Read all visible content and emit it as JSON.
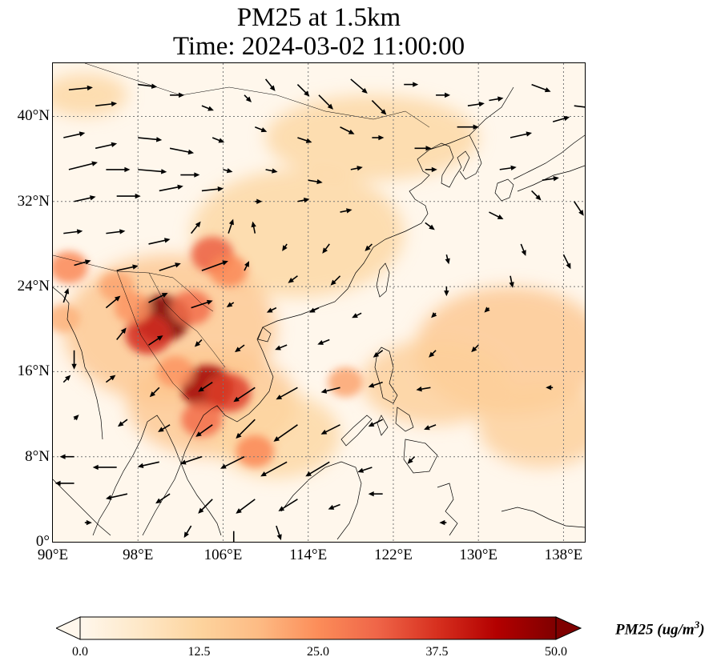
{
  "title": {
    "line1": "PM25 at 1.5km",
    "line2": "Time: 2024-03-02 11:00:00"
  },
  "map": {
    "extent": {
      "lon": [
        90,
        140
      ],
      "lat": [
        0,
        45
      ]
    },
    "lat_ticks": [
      {
        "value": 0,
        "label": "0°"
      },
      {
        "value": 8,
        "label": "8°N"
      },
      {
        "value": 16,
        "label": "16°N"
      },
      {
        "value": 24,
        "label": "24°N"
      },
      {
        "value": 32,
        "label": "32°N"
      },
      {
        "value": 40,
        "label": "40°N"
      }
    ],
    "lon_ticks": [
      {
        "value": 90,
        "label": "90°E"
      },
      {
        "value": 98,
        "label": "98°E"
      },
      {
        "value": 106,
        "label": "106°E"
      },
      {
        "value": 114,
        "label": "114°E"
      },
      {
        "value": 122,
        "label": "122°E"
      },
      {
        "value": 130,
        "label": "130°E"
      },
      {
        "value": 138,
        "label": "138°E"
      }
    ],
    "gridlines": true,
    "colors": {
      "background": "#fff7ec",
      "coast": "#000000",
      "grid": "#777777",
      "arrow": "#000000"
    }
  },
  "colorbar": {
    "label_main": "PM25 (ug/m",
    "label_sup": "3",
    "label_end": ")",
    "min": 0,
    "max": 50,
    "extend": "both",
    "ticks": [
      "0.0",
      "12.5",
      "25.0",
      "37.5",
      "50.0"
    ],
    "colormap": [
      "#fff7ec",
      "#fee8c8",
      "#fdd49e",
      "#fdbb84",
      "#fc8d59",
      "#ef6548",
      "#d7301f",
      "#b30000",
      "#7f0000"
    ]
  },
  "pm25_hotspots": [
    {
      "lon": 100.3,
      "lat": 21.0,
      "value": 50
    },
    {
      "lon": 99.0,
      "lat": 19.5,
      "value": 38
    },
    {
      "lon": 103.0,
      "lat": 22.0,
      "value": 30
    },
    {
      "lon": 104.5,
      "lat": 14.5,
      "value": 46
    },
    {
      "lon": 106.5,
      "lat": 14.0,
      "value": 36
    },
    {
      "lon": 104.0,
      "lat": 11.5,
      "value": 30
    },
    {
      "lon": 105.0,
      "lat": 27.0,
      "value": 32
    },
    {
      "lon": 106.5,
      "lat": 25.5,
      "value": 26
    },
    {
      "lon": 91.5,
      "lat": 25.8,
      "value": 26
    },
    {
      "lon": 96.0,
      "lat": 24.0,
      "value": 22
    },
    {
      "lon": 109.0,
      "lat": 8.5,
      "value": 26
    },
    {
      "lon": 117.5,
      "lat": 15.0,
      "value": 22
    },
    {
      "lon": 97.5,
      "lat": 22.0,
      "value": 24
    },
    {
      "lon": 91.0,
      "lat": 21.0,
      "value": 20
    },
    {
      "lon": 101.5,
      "lat": 16.0,
      "value": 24
    }
  ],
  "pm25_bands": [
    {
      "lon": 113,
      "lat": 29,
      "rx": 10,
      "ry": 6,
      "value": 12
    },
    {
      "lon": 120,
      "lat": 38,
      "rx": 10,
      "ry": 4,
      "value": 12
    },
    {
      "lon": 133,
      "lat": 18,
      "rx": 9,
      "ry": 6,
      "value": 16
    },
    {
      "lon": 126,
      "lat": 15,
      "rx": 7,
      "ry": 4,
      "value": 14
    },
    {
      "lon": 101,
      "lat": 20,
      "rx": 10,
      "ry": 7,
      "value": 16
    },
    {
      "lon": 105,
      "lat": 13,
      "rx": 8,
      "ry": 5,
      "value": 16
    },
    {
      "lon": 111,
      "lat": 10,
      "rx": 6,
      "ry": 4,
      "value": 12
    },
    {
      "lon": 93,
      "lat": 42,
      "rx": 4,
      "ry": 2,
      "value": 12
    },
    {
      "lon": 136,
      "lat": 11,
      "rx": 6,
      "ry": 4,
      "value": 14
    }
  ],
  "wind_vectors": [
    {
      "lon": 91.5,
      "lat": 42.5,
      "u": 1.0,
      "v": 0.1
    },
    {
      "lon": 94,
      "lat": 41,
      "u": 0.9,
      "v": 0.1
    },
    {
      "lon": 98,
      "lat": 43,
      "u": 0.8,
      "v": -0.1
    },
    {
      "lon": 101,
      "lat": 42,
      "u": 0.6,
      "v": 0.0
    },
    {
      "lon": 104,
      "lat": 41,
      "u": 0.5,
      "v": -0.2
    },
    {
      "lon": 108,
      "lat": 42,
      "u": 0.3,
      "v": -0.3
    },
    {
      "lon": 110,
      "lat": 43.5,
      "u": 0.4,
      "v": -0.5
    },
    {
      "lon": 113,
      "lat": 43,
      "u": 0.5,
      "v": -0.5
    },
    {
      "lon": 115,
      "lat": 42,
      "u": 0.6,
      "v": -0.6
    },
    {
      "lon": 118,
      "lat": 43.5,
      "u": 0.7,
      "v": -0.6
    },
    {
      "lon": 120,
      "lat": 41.5,
      "u": 0.6,
      "v": -0.6
    },
    {
      "lon": 123,
      "lat": 43,
      "u": 0.6,
      "v": 0.0
    },
    {
      "lon": 126,
      "lat": 42,
      "u": 0.6,
      "v": 0.0
    },
    {
      "lon": 129,
      "lat": 41,
      "u": 0.7,
      "v": 0.1
    },
    {
      "lon": 131,
      "lat": 41.5,
      "u": 0.6,
      "v": 0.1
    },
    {
      "lon": 135,
      "lat": 43,
      "u": 0.8,
      "v": -0.3
    },
    {
      "lon": 139,
      "lat": 41,
      "u": 0.8,
      "v": -0.1
    },
    {
      "lon": 91,
      "lat": 38,
      "u": 0.9,
      "v": 0.2
    },
    {
      "lon": 94,
      "lat": 37,
      "u": 0.9,
      "v": 0.2
    },
    {
      "lon": 98,
      "lat": 38,
      "u": 1.0,
      "v": -0.1
    },
    {
      "lon": 101,
      "lat": 37,
      "u": 1.0,
      "v": -0.2
    },
    {
      "lon": 105,
      "lat": 38,
      "u": 0.5,
      "v": -0.2
    },
    {
      "lon": 109,
      "lat": 39,
      "u": 0.5,
      "v": -0.2
    },
    {
      "lon": 113,
      "lat": 38,
      "u": 0.6,
      "v": -0.2
    },
    {
      "lon": 117,
      "lat": 39,
      "u": 0.6,
      "v": -0.3
    },
    {
      "lon": 120,
      "lat": 38,
      "u": 0.5,
      "v": 0.0
    },
    {
      "lon": 124,
      "lat": 37,
      "u": 0.7,
      "v": 0.0
    },
    {
      "lon": 128,
      "lat": 39,
      "u": 0.9,
      "v": 0.0
    },
    {
      "lon": 133,
      "lat": 38,
      "u": 0.9,
      "v": 0.2
    },
    {
      "lon": 137,
      "lat": 39.5,
      "u": 0.7,
      "v": 0.2
    },
    {
      "lon": 91.5,
      "lat": 35,
      "u": 1.2,
      "v": 0.3
    },
    {
      "lon": 95,
      "lat": 35,
      "u": 1.0,
      "v": 0.0
    },
    {
      "lon": 98,
      "lat": 35,
      "u": 1.2,
      "v": -0.1
    },
    {
      "lon": 102,
      "lat": 34.5,
      "u": 0.8,
      "v": 0.0
    },
    {
      "lon": 106,
      "lat": 35,
      "u": 0.4,
      "v": -0.1
    },
    {
      "lon": 110,
      "lat": 35,
      "u": 0.5,
      "v": -0.1
    },
    {
      "lon": 114,
      "lat": 34,
      "u": 0.6,
      "v": -0.1
    },
    {
      "lon": 118,
      "lat": 35,
      "u": 0.5,
      "v": 0.1
    },
    {
      "lon": 125,
      "lat": 35,
      "u": 0.5,
      "v": 0.0
    },
    {
      "lon": 132,
      "lat": 35,
      "u": 0.7,
      "v": 0.1
    },
    {
      "lon": 136,
      "lat": 34,
      "u": 0.7,
      "v": 0.1
    },
    {
      "lon": 92,
      "lat": 32,
      "u": 0.9,
      "v": 0.2
    },
    {
      "lon": 96,
      "lat": 32.5,
      "u": 1.0,
      "v": 0.0
    },
    {
      "lon": 100,
      "lat": 33,
      "u": 1.0,
      "v": 0.2
    },
    {
      "lon": 104,
      "lat": 33,
      "u": 0.9,
      "v": 0.1
    },
    {
      "lon": 109,
      "lat": 32,
      "u": 0.3,
      "v": 0.0
    },
    {
      "lon": 113,
      "lat": 32,
      "u": 0.5,
      "v": 0.1
    },
    {
      "lon": 117,
      "lat": 31,
      "u": 0.5,
      "v": 0.1
    },
    {
      "lon": 125,
      "lat": 30,
      "u": 0.4,
      "v": -0.3
    },
    {
      "lon": 131,
      "lat": 31,
      "u": 0.6,
      "v": -0.3
    },
    {
      "lon": 135,
      "lat": 33,
      "u": 0.4,
      "v": -0.4
    },
    {
      "lon": 139,
      "lat": 32,
      "u": 0.4,
      "v": -0.6
    },
    {
      "lon": 91,
      "lat": 29,
      "u": 0.8,
      "v": 0.1
    },
    {
      "lon": 95,
      "lat": 29,
      "u": 0.8,
      "v": 0.1
    },
    {
      "lon": 99,
      "lat": 28,
      "u": 0.9,
      "v": 0.2
    },
    {
      "lon": 103,
      "lat": 29,
      "u": 0.4,
      "v": 0.5
    },
    {
      "lon": 106.5,
      "lat": 29,
      "u": 0.2,
      "v": 0.6
    },
    {
      "lon": 109,
      "lat": 29,
      "u": -0.1,
      "v": 0.5
    },
    {
      "lon": 112,
      "lat": 28,
      "u": -0.2,
      "v": -0.3
    },
    {
      "lon": 116,
      "lat": 28,
      "u": -0.3,
      "v": -0.4
    },
    {
      "lon": 120,
      "lat": 28,
      "u": -0.3,
      "v": -0.3
    },
    {
      "lon": 127,
      "lat": 27,
      "u": 0.1,
      "v": -0.4
    },
    {
      "lon": 134,
      "lat": 28,
      "u": 0.2,
      "v": -0.5
    },
    {
      "lon": 138,
      "lat": 27,
      "u": 0.3,
      "v": -0.6
    },
    {
      "lon": 92,
      "lat": 26,
      "u": 0.7,
      "v": 0.2
    },
    {
      "lon": 96,
      "lat": 25.5,
      "u": 0.9,
      "v": 0.2
    },
    {
      "lon": 100,
      "lat": 25.5,
      "u": 0.9,
      "v": 0.3
    },
    {
      "lon": 104,
      "lat": 25.5,
      "u": 1.1,
      "v": 0.4
    },
    {
      "lon": 108,
      "lat": 25.5,
      "u": 0.2,
      "v": 0.4
    },
    {
      "lon": 113,
      "lat": 25,
      "u": -0.4,
      "v": -0.3
    },
    {
      "lon": 117,
      "lat": 25,
      "u": -0.4,
      "v": -0.4
    },
    {
      "lon": 127,
      "lat": 24,
      "u": 0.0,
      "v": -0.4
    },
    {
      "lon": 133,
      "lat": 25,
      "u": 0.1,
      "v": -0.5
    },
    {
      "lon": 91,
      "lat": 22.5,
      "u": 0.2,
      "v": 0.6
    },
    {
      "lon": 95,
      "lat": 22,
      "u": 0.6,
      "v": 0.5
    },
    {
      "lon": 99,
      "lat": 22.5,
      "u": 0.8,
      "v": 0.4
    },
    {
      "lon": 103,
      "lat": 22,
      "u": 0.9,
      "v": 0.3
    },
    {
      "lon": 107,
      "lat": 22.5,
      "u": -0.3,
      "v": -0.2
    },
    {
      "lon": 111,
      "lat": 22,
      "u": -0.4,
      "v": -0.2
    },
    {
      "lon": 115,
      "lat": 22,
      "u": -0.4,
      "v": -0.2
    },
    {
      "lon": 119,
      "lat": 21.5,
      "u": -0.4,
      "v": -0.2
    },
    {
      "lon": 126,
      "lat": 21.5,
      "u": -0.2,
      "v": -0.2
    },
    {
      "lon": 131,
      "lat": 22,
      "u": -0.2,
      "v": -0.2
    },
    {
      "lon": 92,
      "lat": 18,
      "u": 0.0,
      "v": -0.8
    },
    {
      "lon": 96,
      "lat": 19,
      "u": 0.4,
      "v": 0.5
    },
    {
      "lon": 99,
      "lat": 18.5,
      "u": 0.6,
      "v": 0.4
    },
    {
      "lon": 104,
      "lat": 19,
      "u": -0.3,
      "v": -0.3
    },
    {
      "lon": 108,
      "lat": 18.5,
      "u": -0.4,
      "v": -0.3
    },
    {
      "lon": 112,
      "lat": 18.5,
      "u": -0.5,
      "v": -0.2
    },
    {
      "lon": 116,
      "lat": 19,
      "u": -0.5,
      "v": -0.2
    },
    {
      "lon": 121,
      "lat": 18,
      "u": -0.4,
      "v": -0.3
    },
    {
      "lon": 126,
      "lat": 18,
      "u": -0.3,
      "v": -0.3
    },
    {
      "lon": 130,
      "lat": 18.5,
      "u": -0.3,
      "v": -0.3
    },
    {
      "lon": 91,
      "lat": 15,
      "u": 0.3,
      "v": 0.3
    },
    {
      "lon": 95,
      "lat": 15,
      "u": 0.4,
      "v": 0.3
    },
    {
      "lon": 100,
      "lat": 14.5,
      "u": -0.4,
      "v": -0.4
    },
    {
      "lon": 105,
      "lat": 15,
      "u": -0.6,
      "v": -0.4
    },
    {
      "lon": 109,
      "lat": 14.5,
      "u": -0.9,
      "v": -0.6
    },
    {
      "lon": 113,
      "lat": 14.5,
      "u": -0.9,
      "v": -0.5
    },
    {
      "lon": 117,
      "lat": 14.5,
      "u": -0.8,
      "v": -0.2
    },
    {
      "lon": 121,
      "lat": 15,
      "u": -0.6,
      "v": -0.2
    },
    {
      "lon": 125.5,
      "lat": 14.5,
      "u": -0.6,
      "v": -0.1
    },
    {
      "lon": 137,
      "lat": 14.5,
      "u": -0.3,
      "v": 0.0
    },
    {
      "lon": 92,
      "lat": 11.5,
      "u": 0.2,
      "v": 0.2
    },
    {
      "lon": 97,
      "lat": 11.5,
      "u": -0.4,
      "v": -0.3
    },
    {
      "lon": 101,
      "lat": 11,
      "u": -0.5,
      "v": -0.3
    },
    {
      "lon": 105,
      "lat": 11,
      "u": -0.7,
      "v": -0.5
    },
    {
      "lon": 109,
      "lat": 11.5,
      "u": -0.8,
      "v": -0.8
    },
    {
      "lon": 113,
      "lat": 11,
      "u": -1.0,
      "v": -0.7
    },
    {
      "lon": 117,
      "lat": 11,
      "u": -0.8,
      "v": -0.4
    },
    {
      "lon": 121,
      "lat": 11.5,
      "u": -0.6,
      "v": -0.3
    },
    {
      "lon": 126,
      "lat": 11,
      "u": -0.5,
      "v": -0.2
    },
    {
      "lon": 92,
      "lat": 8,
      "u": -0.6,
      "v": 0.0
    },
    {
      "lon": 96,
      "lat": 7,
      "u": -1.0,
      "v": 0.0
    },
    {
      "lon": 100,
      "lat": 7.5,
      "u": -0.9,
      "v": -0.2
    },
    {
      "lon": 104,
      "lat": 8,
      "u": -0.9,
      "v": -0.3
    },
    {
      "lon": 108,
      "lat": 8,
      "u": -1.0,
      "v": -0.5
    },
    {
      "lon": 112,
      "lat": 7.5,
      "u": -1.1,
      "v": -0.6
    },
    {
      "lon": 116,
      "lat": 7.5,
      "u": -1.0,
      "v": -0.6
    },
    {
      "lon": 120,
      "lat": 7,
      "u": -0.6,
      "v": -0.2
    },
    {
      "lon": 124,
      "lat": 8,
      "u": -0.3,
      "v": -0.3
    },
    {
      "lon": 92,
      "lat": 5.5,
      "u": -0.8,
      "v": 0.0
    },
    {
      "lon": 97,
      "lat": 4.5,
      "u": -0.9,
      "v": -0.2
    },
    {
      "lon": 101,
      "lat": 4.5,
      "u": -0.6,
      "v": -0.4
    },
    {
      "lon": 105,
      "lat": 4,
      "u": -0.6,
      "v": -0.6
    },
    {
      "lon": 109,
      "lat": 4,
      "u": -0.8,
      "v": -0.6
    },
    {
      "lon": 113,
      "lat": 4,
      "u": -0.8,
      "v": -0.5
    },
    {
      "lon": 117,
      "lat": 3.5,
      "u": -0.5,
      "v": -0.2
    },
    {
      "lon": 121,
      "lat": 4.5,
      "u": -0.6,
      "v": 0.0
    },
    {
      "lon": 127,
      "lat": 1.8,
      "u": -0.3,
      "v": 0.0
    },
    {
      "lon": 93,
      "lat": 1.8,
      "u": 0.3,
      "v": 0.0
    },
    {
      "lon": 103,
      "lat": 1.5,
      "u": -0.3,
      "v": -0.5
    },
    {
      "lon": 107,
      "lat": 1.0,
      "u": 0.0,
      "v": -0.8
    },
    {
      "lon": 111,
      "lat": 1.5,
      "u": 0.2,
      "v": -0.6
    }
  ]
}
